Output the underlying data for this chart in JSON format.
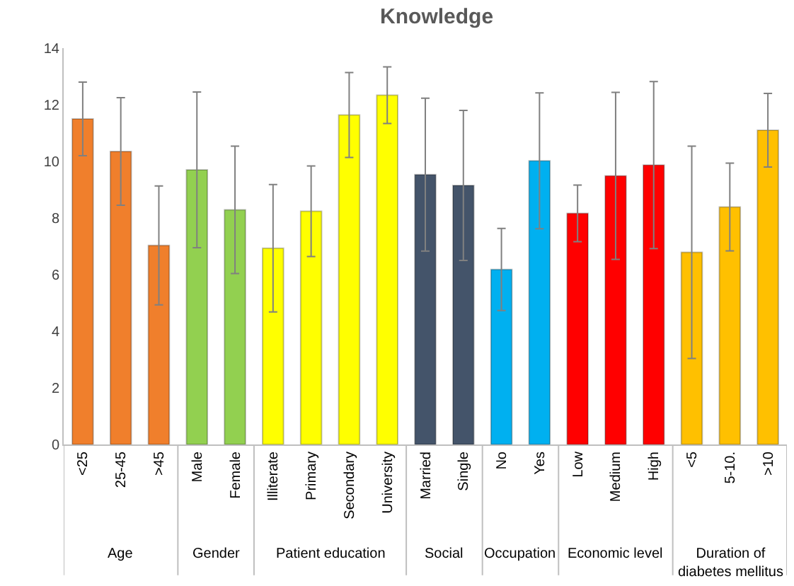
{
  "chart_data": {
    "type": "bar",
    "title": "Knowledge",
    "categories": [
      "<25",
      "25-45",
      ">45",
      "Male",
      "Female",
      "Illiterate",
      "Primary",
      "Secondary",
      "University",
      "Married",
      "Single",
      "No",
      "Yes",
      "Low",
      "Medium",
      "High",
      "<5",
      "5-10.",
      ">10"
    ],
    "values": [
      11.5,
      10.35,
      7.03,
      9.7,
      8.29,
      6.93,
      8.24,
      11.64,
      12.34,
      9.53,
      9.15,
      6.18,
      10.02,
      8.16,
      9.49,
      9.87,
      6.79,
      8.39,
      11.1
    ],
    "errors": [
      1.3,
      1.9,
      2.1,
      2.75,
      2.25,
      2.25,
      1.6,
      1.5,
      1.0,
      2.7,
      2.65,
      1.45,
      2.4,
      1.0,
      2.95,
      2.95,
      3.75,
      1.55,
      1.3
    ],
    "colors": [
      "#f07f2c",
      "#f07f2c",
      "#f07f2c",
      "#92d050",
      "#92d050",
      "#ffff00",
      "#ffff00",
      "#ffff00",
      "#ffff00",
      "#44546a",
      "#44546a",
      "#00b0f0",
      "#00b0f0",
      "#ff0000",
      "#ff0000",
      "#ff0000",
      "#ffc000",
      "#ffc000",
      "#ffc000"
    ],
    "annotations": [
      "Age",
      "Gender",
      "Patient education",
      "Social",
      "Occupation",
      "Economic level",
      "Duration of diabetes mellitus"
    ],
    "ylim": [
      0,
      14
    ],
    "yticks": [
      0,
      2,
      4,
      6,
      8,
      10,
      12,
      14
    ],
    "grid": false,
    "legend": false
  }
}
